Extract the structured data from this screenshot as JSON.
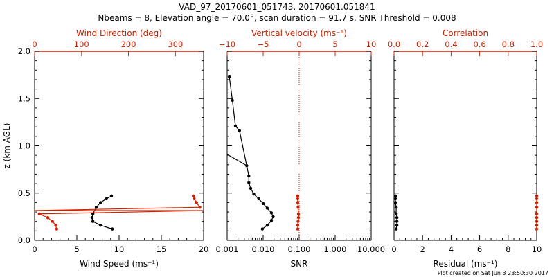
{
  "title": {
    "line1": "VAD_97_20170601_051743, 20170601.051841",
    "line2": "Nbeams = 8, Elevation angle = 70.0°, scan duration = 91.7 s, SNR Threshold = 0.008"
  },
  "footer": "Plot created on Sat Jun  3 23:50:30 2017",
  "colors": {
    "primary": "#000000",
    "secondary": "#cc2200"
  },
  "chart_data": [
    {
      "type": "line",
      "panel": "wind",
      "ylabel": "z (km AGL)",
      "ylim": [
        0,
        2.0
      ],
      "yticks": [
        "0.0",
        "0.5",
        "1.0",
        "1.5",
        "2.0"
      ],
      "xlabel": "Wind Speed (ms⁻¹)",
      "xlim": [
        0,
        20
      ],
      "xticks": [
        "0",
        "5",
        "10",
        "15",
        "20"
      ],
      "top_label": "Wind Direction (deg)",
      "top_lim": [
        0,
        360
      ],
      "top_ticks": [
        "0",
        "100",
        "200",
        "300"
      ],
      "series": [
        {
          "name": "Wind Speed",
          "axis": "bottom",
          "color": "#000000",
          "x": [
            9.2,
            7.8,
            6.9,
            6.8,
            6.9,
            7.3,
            7.8,
            8.5,
            9.1
          ],
          "y": [
            0.12,
            0.16,
            0.2,
            0.24,
            0.28,
            0.35,
            0.4,
            0.44,
            0.47
          ]
        },
        {
          "name": "Wind Direction",
          "axis": "top",
          "color": "#cc2200",
          "x": [
            47,
            45,
            38,
            28,
            10,
            352,
            345,
            340,
            338
          ],
          "y": [
            0.12,
            0.16,
            0.2,
            0.24,
            0.28,
            0.35,
            0.4,
            0.44,
            0.47
          ],
          "wrap": true
        }
      ]
    },
    {
      "type": "line",
      "panel": "snr",
      "xlabel": "SNR",
      "xscale": "log",
      "xlim": [
        0.001,
        10
      ],
      "xticks": [
        "0.001",
        "0.010",
        "0.100",
        "1.000",
        "10.000"
      ],
      "top_label": "Vertical velocity (ms⁻¹)",
      "top_lim": [
        -10,
        10
      ],
      "top_ticks": [
        "−10",
        "−5",
        "0",
        "5",
        "10"
      ],
      "ylim": [
        0,
        2.0
      ],
      "series": [
        {
          "name": "SNR",
          "axis": "bottom",
          "color": "#000000",
          "x": [
            0.0095,
            0.013,
            0.017,
            0.019,
            0.017,
            0.013,
            0.01,
            0.0075,
            0.0055,
            0.0045,
            0.004,
            0.004,
            0.0035,
            0.0022,
            0.0017,
            0.0014,
            0.00115
          ],
          "y": [
            0.12,
            0.16,
            0.21,
            0.25,
            0.29,
            0.34,
            0.39,
            0.44,
            0.49,
            0.55,
            0.61,
            0.68,
            0.79,
            1.16,
            1.21,
            1.48,
            1.73
          ]
        },
        {
          "name": "SNR (below threshold)",
          "axis": "bottom",
          "color": "#000000",
          "markers": false,
          "x": [
            0.0035,
            0.001
          ],
          "y": [
            0.79,
            0.91
          ]
        },
        {
          "name": "Vertical velocity",
          "axis": "top",
          "color": "#cc2200",
          "x": [
            -0.2,
            -0.2,
            -0.15,
            -0.1,
            -0.1,
            -0.15,
            -0.2,
            -0.2,
            -0.2
          ],
          "y": [
            0.12,
            0.16,
            0.2,
            0.24,
            0.28,
            0.35,
            0.4,
            0.44,
            0.47
          ]
        }
      ],
      "reference_line": {
        "axis": "top",
        "value": 0,
        "style": "dotted",
        "color": "#cc2200"
      }
    },
    {
      "type": "line",
      "panel": "residual",
      "xlabel": "Residual (ms⁻¹)",
      "xlim": [
        0,
        10
      ],
      "xticks": [
        "0",
        "2",
        "4",
        "6",
        "8",
        "10"
      ],
      "top_label": "Correlation",
      "top_lim": [
        0,
        1
      ],
      "top_ticks": [
        "0.0",
        "0.2",
        "0.4",
        "0.6",
        "0.8",
        "1.0"
      ],
      "ylim": [
        0,
        2.0
      ],
      "series": [
        {
          "name": "Residual",
          "axis": "bottom",
          "color": "#000000",
          "x": [
            0.15,
            0.2,
            0.2,
            0.2,
            0.15,
            0.15,
            0.1,
            0.1,
            0.1
          ],
          "y": [
            0.12,
            0.16,
            0.2,
            0.24,
            0.28,
            0.35,
            0.4,
            0.44,
            0.47
          ]
        },
        {
          "name": "Correlation",
          "axis": "top",
          "color": "#cc2200",
          "x": [
            1.0,
            1.0,
            1.0,
            1.0,
            1.0,
            1.0,
            1.0,
            1.0,
            1.0
          ],
          "y": [
            0.12,
            0.16,
            0.2,
            0.24,
            0.28,
            0.35,
            0.4,
            0.44,
            0.47
          ]
        }
      ]
    }
  ]
}
